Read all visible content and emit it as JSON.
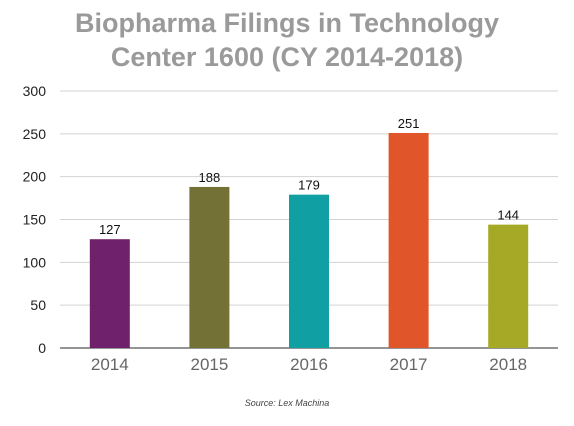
{
  "title_lines": [
    "Biopharma Filings in Technology",
    "Center 1600 (CY 2014-2018)"
  ],
  "source": "Source: Lex Machina",
  "chart_data": {
    "type": "bar",
    "title": "Biopharma Filings in Technology Center 1600 (CY 2014-2018)",
    "categories": [
      "2014",
      "2015",
      "2016",
      "2017",
      "2018"
    ],
    "values": [
      127,
      188,
      179,
      251,
      144
    ],
    "colors": [
      "#6f216b",
      "#737136",
      "#109fa3",
      "#e05529",
      "#a5a925"
    ],
    "ylim": [
      0,
      300
    ],
    "yticks": [
      0,
      50,
      100,
      150,
      200,
      250,
      300
    ],
    "grid": true,
    "data_labels": true
  }
}
